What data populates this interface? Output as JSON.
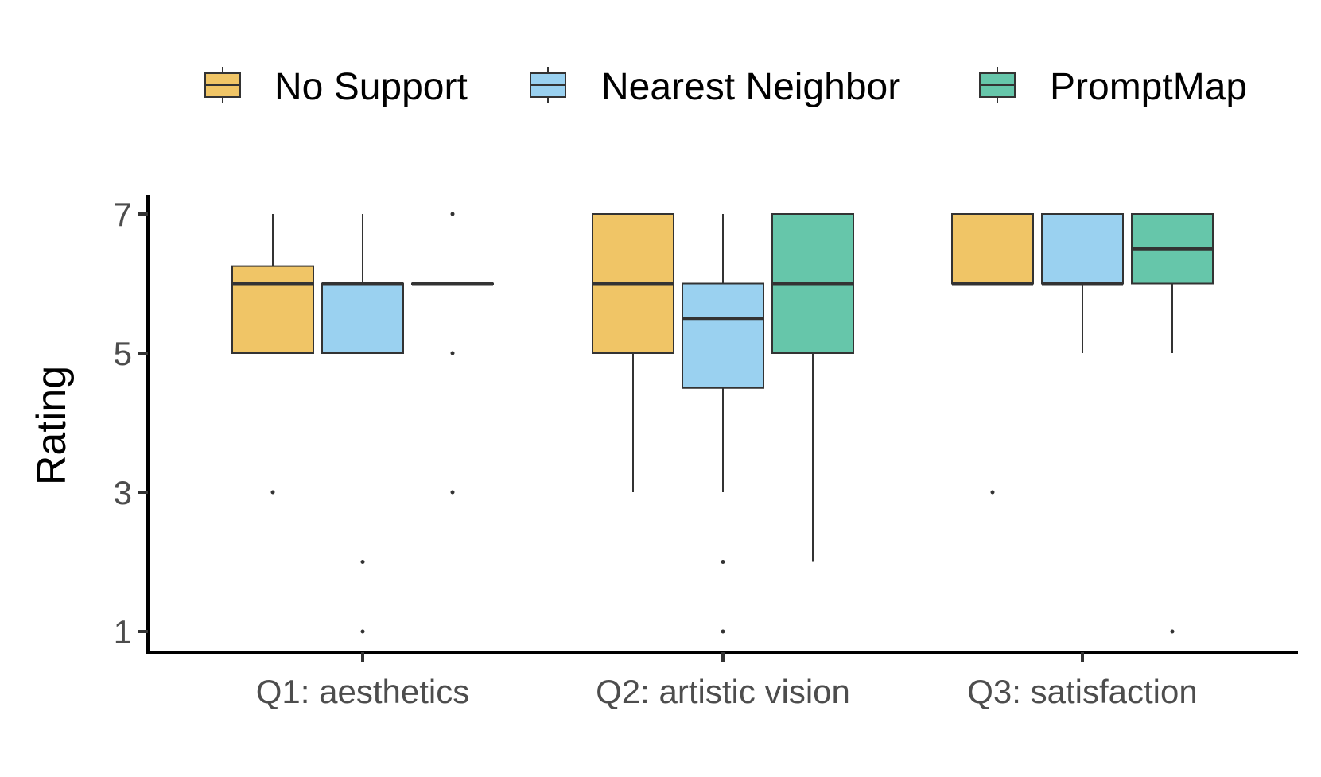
{
  "chart_data": {
    "type": "boxplot",
    "title": "",
    "xlabel": "",
    "ylabel": "Rating",
    "ylim": [
      0.7,
      7.3
    ],
    "yticks": [
      1,
      3,
      5,
      7
    ],
    "yticklabels": [
      "1",
      "3",
      "5",
      "7"
    ],
    "categories": [
      "Q1: aesthetics",
      "Q2: artistic vision",
      "Q3: satisfaction"
    ],
    "legend_position": "top",
    "series": [
      {
        "name": "No Support",
        "color": "#f0c566",
        "boxes": [
          {
            "q1": 5,
            "median": 6,
            "q3": 6.25,
            "whisker_low": 5,
            "whisker_high": 7,
            "outliers": [
              3
            ]
          },
          {
            "q1": 5,
            "median": 6,
            "q3": 7,
            "whisker_low": 3,
            "whisker_high": 7,
            "outliers": []
          },
          {
            "q1": 6,
            "median": 6,
            "q3": 7,
            "whisker_low": 6,
            "whisker_high": 7,
            "outliers": [
              3
            ]
          }
        ]
      },
      {
        "name": "Nearest Neighbor",
        "color": "#9ad1f0",
        "boxes": [
          {
            "q1": 5,
            "median": 6,
            "q3": 6,
            "whisker_low": 5,
            "whisker_high": 7,
            "outliers": [
              2,
              1
            ]
          },
          {
            "q1": 4.5,
            "median": 5.5,
            "q3": 6,
            "whisker_low": 3,
            "whisker_high": 7,
            "outliers": [
              2,
              1
            ]
          },
          {
            "q1": 6,
            "median": 6,
            "q3": 7,
            "whisker_low": 5,
            "whisker_high": 7,
            "outliers": []
          }
        ]
      },
      {
        "name": "PromptMap",
        "color": "#66c6aa",
        "boxes": [
          {
            "q1": 6,
            "median": 6,
            "q3": 6,
            "whisker_low": 6,
            "whisker_high": 6,
            "outliers": [
              7,
              5,
              3
            ]
          },
          {
            "q1": 5,
            "median": 6,
            "q3": 7,
            "whisker_low": 2,
            "whisker_high": 7,
            "outliers": []
          },
          {
            "q1": 6,
            "median": 6.5,
            "q3": 7,
            "whisker_low": 5,
            "whisker_high": 7,
            "outliers": [
              1
            ]
          }
        ]
      }
    ]
  }
}
